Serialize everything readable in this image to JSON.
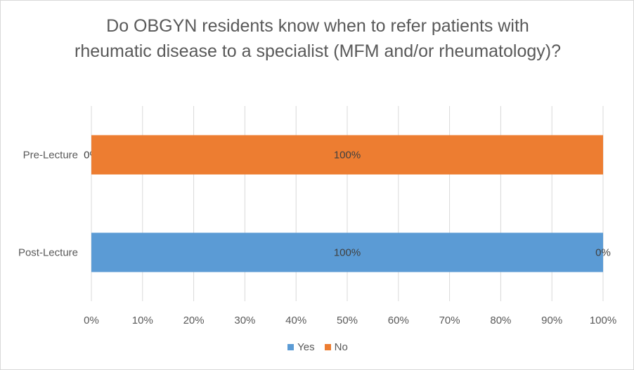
{
  "chart_data": {
    "type": "bar",
    "orientation": "horizontal",
    "stacked": "percent",
    "title": "Do OBGYN residents know when to refer patients with rheumatic disease to a specialist (MFM and/or rheumatology)?",
    "categories": [
      "Pre-Lecture",
      "Post-Lecture"
    ],
    "series": [
      {
        "name": "Yes",
        "color": "#5B9BD5",
        "values": [
          0,
          100
        ],
        "labels": [
          "0%",
          "100%"
        ]
      },
      {
        "name": "No",
        "color": "#ED7D31",
        "values": [
          100,
          0
        ],
        "labels": [
          "100%",
          "0%"
        ]
      }
    ],
    "xlim": [
      0,
      100
    ],
    "xticks": [
      "0%",
      "10%",
      "20%",
      "30%",
      "40%",
      "50%",
      "60%",
      "70%",
      "80%",
      "90%",
      "100%"
    ],
    "grid": true,
    "legend": "bottom"
  }
}
